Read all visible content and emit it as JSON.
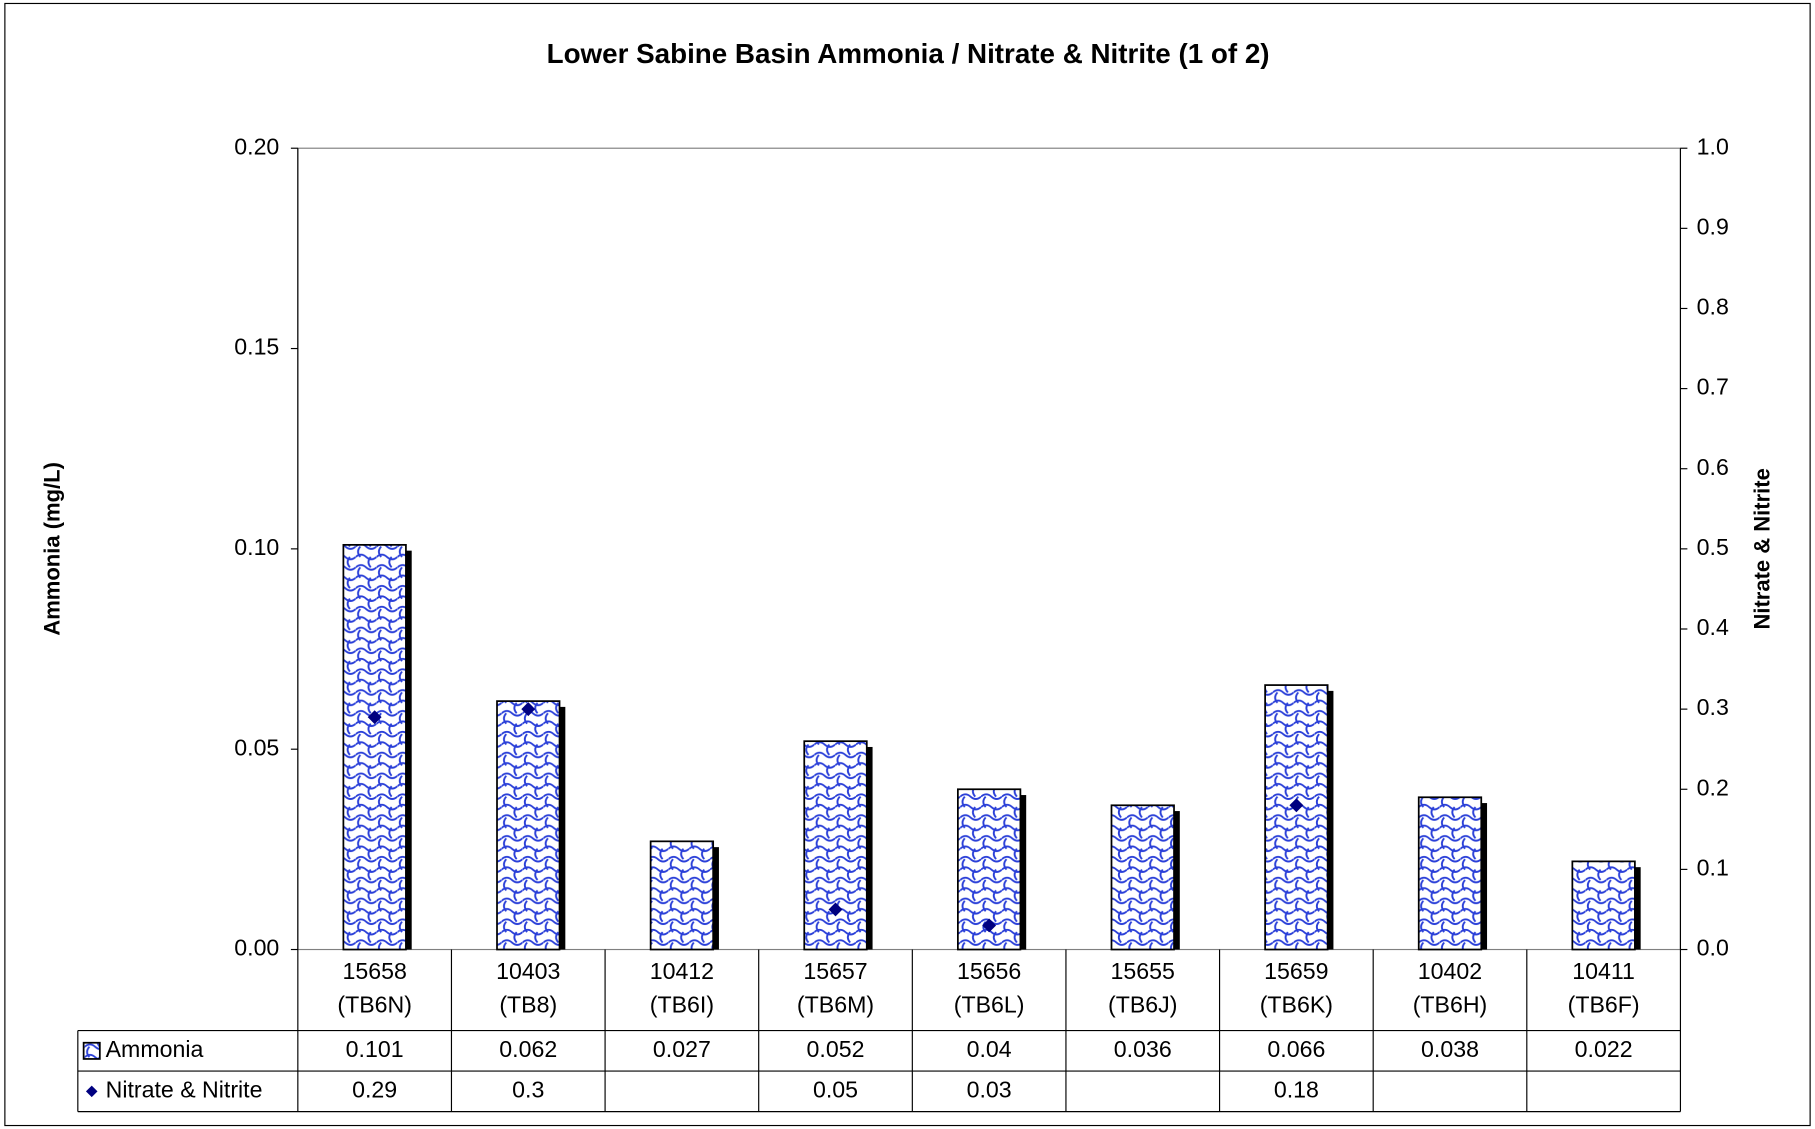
{
  "chart_data": {
    "type": "bar",
    "title": "Lower Sabine Basin Ammonia / Nitrate & Nitrite (1 of 2)",
    "y_label": "Ammonia (mg/L)",
    "y2_label": "Nitrate & Nitrite",
    "categories": [
      [
        "15658",
        "(TB6N)"
      ],
      [
        "10403",
        "(TB8)"
      ],
      [
        "10412",
        "(TB6I)"
      ],
      [
        "15657",
        "(TB6M)"
      ],
      [
        "15656",
        "(TB6L)"
      ],
      [
        "15655",
        "(TB6J)"
      ],
      [
        "15659",
        "(TB6K)"
      ],
      [
        "10402",
        "(TB6H)"
      ],
      [
        "10411",
        "(TB6F)"
      ]
    ],
    "series": [
      {
        "name": "Ammonia",
        "type": "bar",
        "color": "#2a3fd8",
        "values": [
          0.101,
          0.062,
          0.027,
          0.052,
          0.04,
          0.036,
          0.066,
          0.038,
          0.022
        ]
      },
      {
        "name": "Nitrate & Nitrite",
        "type": "scatter",
        "axis": "y2",
        "color": "#000080",
        "values": [
          0.29,
          0.3,
          null,
          0.05,
          0.03,
          null,
          0.18,
          null,
          null
        ]
      }
    ],
    "ylim": [
      0,
      0.2
    ],
    "yticks": [
      {
        "value": 0,
        "label": "0.00"
      },
      0.05,
      {
        "value": 0.1,
        "label": "0.10"
      },
      0.15,
      {
        "value": 0.2,
        "label": "0.20"
      }
    ],
    "y2lim": [
      0,
      1
    ],
    "y2ticks": [
      {
        "value": 0,
        "label": "0.0"
      },
      0.1,
      0.2,
      0.3,
      0.4,
      0.5,
      0.6,
      0.7,
      0.8,
      0.9,
      {
        "value": 1,
        "label": "1.0"
      }
    ],
    "data_table": true
  }
}
